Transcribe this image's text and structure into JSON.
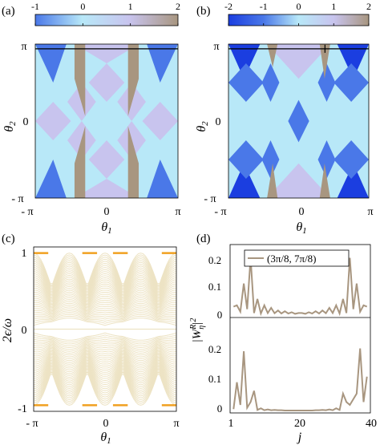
{
  "chart_data": [
    {
      "panel_label": "(a)",
      "type": "heatmap",
      "colorbar": {
        "ticks": [
          "-1",
          "0",
          "1",
          "2"
        ],
        "min": -1,
        "max": 2
      },
      "xlabel": "θ1",
      "ylabel": "θ2",
      "xticks": [
        "- π",
        "0",
        "π"
      ],
      "yticks": [
        "- π",
        "0",
        "π"
      ],
      "xlim": [
        -3.1416,
        3.1416
      ],
      "ylim": [
        -3.1416,
        3.1416
      ],
      "colors": {
        "-1": "#4a78e8",
        "0": "#b8e8f8",
        "1": "#c8c4ee",
        "2": "#a89680"
      },
      "marker_line_theta2": 2.95
    },
    {
      "panel_label": "(b)",
      "type": "heatmap",
      "colorbar": {
        "ticks": [
          "-2",
          "-1",
          "0",
          "1",
          "2"
        ],
        "min": -2,
        "max": 2
      },
      "xlabel": "θ1",
      "ylabel": "θ2",
      "xticks": [
        "- π",
        "0",
        "π"
      ],
      "yticks": [
        "- π",
        "0",
        "π"
      ],
      "xlim": [
        -3.1416,
        3.1416
      ],
      "ylim": [
        -3.1416,
        3.1416
      ],
      "colors": {
        "-2": "#1b3ee0",
        "-1": "#4a78e8",
        "0": "#b8e8f8",
        "1": "#c8c4ee",
        "2": "#a89680"
      },
      "marker_line_theta2": 2.95,
      "marker_point": [
        1.18,
        2.95
      ]
    },
    {
      "panel_label": "(c)",
      "type": "line",
      "xlabel": "θ1",
      "ylabel": "2ε/ω",
      "xticks": [
        "- π",
        "0",
        "π"
      ],
      "yticks": [
        "-1",
        "0",
        "1"
      ],
      "xlim": [
        -3.1416,
        3.1416
      ],
      "ylim": [
        -1.08,
        1.08
      ],
      "band_color": "#ede3c4",
      "edge_color": "#f0a020",
      "edge_segments": [
        [
          -3.1416,
          -2.5
        ],
        [
          -1.0,
          -0.35
        ],
        [
          0.35,
          1.0
        ],
        [
          2.5,
          3.1416
        ]
      ]
    },
    {
      "panel_label": "(d)",
      "type": "line",
      "xlabel": "j",
      "ylabel": "|W_η^R|²",
      "xticks": [
        "1",
        "20",
        "40"
      ],
      "yticks_top": [
        "0",
        "0.1",
        "0.2"
      ],
      "yticks_bottom": [
        "0",
        "0.1",
        "0.2"
      ],
      "xlim": [
        0,
        41
      ],
      "ylim": [
        0,
        0.25
      ],
      "legend": "(3π/8, 7π/8)",
      "line_color": "#a89680",
      "series_top": {
        "x": [
          1,
          2,
          3,
          4,
          5,
          6,
          7,
          8,
          9,
          10,
          11,
          12,
          13,
          14,
          15,
          16,
          17,
          18,
          19,
          20,
          21,
          22,
          23,
          24,
          25,
          26,
          27,
          28,
          29,
          30,
          31,
          32,
          33,
          34,
          35,
          36,
          37,
          38,
          39,
          40
        ],
        "values": [
          0.03,
          0.035,
          0.01,
          0.12,
          0.02,
          0.22,
          0.005,
          0.06,
          0.003,
          0.035,
          0.005,
          0.025,
          0.004,
          0.015,
          0.003,
          0.012,
          0.003,
          0.008,
          0.002,
          0.005,
          0.005,
          0.002,
          0.008,
          0.003,
          0.012,
          0.003,
          0.015,
          0.004,
          0.025,
          0.005,
          0.035,
          0.003,
          0.06,
          0.005,
          0.22,
          0.02,
          0.12,
          0.01,
          0.035,
          0.03
        ]
      },
      "series_bottom": {
        "x": [
          1,
          2,
          3,
          4,
          5,
          6,
          7,
          8,
          9,
          10,
          11,
          12,
          13,
          14,
          15,
          16,
          17,
          18,
          19,
          20,
          21,
          22,
          23,
          24,
          25,
          26,
          27,
          28,
          29,
          30,
          31,
          32,
          33,
          34,
          35,
          36,
          37,
          38,
          39,
          40
        ],
        "values": [
          0.005,
          0.1,
          0.02,
          0.21,
          0.01,
          0.03,
          0.07,
          0.002,
          0.008,
          0.001,
          0.004,
          0.001,
          0.002,
          0.001,
          0.001,
          0.0,
          0.0,
          0.0,
          0.0,
          0.0,
          0.0,
          0.0,
          0.0,
          0.0,
          0.001,
          0.001,
          0.002,
          0.001,
          0.004,
          0.001,
          0.008,
          0.002,
          0.06,
          0.03,
          0.02,
          0.04,
          0.06,
          0.22,
          0.03,
          0.12
        ]
      }
    }
  ]
}
